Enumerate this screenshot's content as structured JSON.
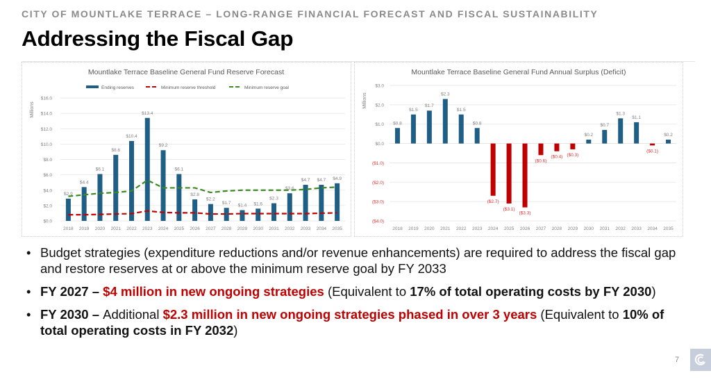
{
  "header": {
    "supertitle": "CITY OF MOUNTLAKE TERRACE – LONG-RANGE FINANCIAL FORECAST AND FISCAL SUSTAINABILITY",
    "title": "Addressing the Fiscal Gap"
  },
  "chart_data": [
    {
      "type": "bar",
      "title": "Mountlake Terrace Baseline General Fund Reserve Forecast",
      "xlabel": "",
      "ylabel": "Millions",
      "ylim": [
        0,
        16
      ],
      "yticks": [
        0,
        2,
        4,
        6,
        8,
        10,
        12,
        14,
        16
      ],
      "ytick_labels": [
        "$0.0",
        "$2.0",
        "$4.0",
        "$6.0",
        "$8.0",
        "$10.0",
        "$12.0",
        "$14.0",
        "$16.0"
      ],
      "grid": true,
      "legend": "top",
      "categories": [
        "2018",
        "2019",
        "2020",
        "2021",
        "2022",
        "2023",
        "2024",
        "2025",
        "2026",
        "2027",
        "2028",
        "2029",
        "2030",
        "2031",
        "2032",
        "2033",
        "2034",
        "2035"
      ],
      "series": [
        {
          "name": "Ending reserves",
          "kind": "bar",
          "color": "#1f5f85",
          "values": [
            2.9,
            4.4,
            6.1,
            8.6,
            10.4,
            13.4,
            9.2,
            6.1,
            2.8,
            2.2,
            1.7,
            1.4,
            1.6,
            2.3,
            3.6,
            4.7,
            4.7,
            4.9
          ],
          "labels": [
            "$2.9",
            "$4.4",
            "$6.1",
            "$8.6",
            "$10.4",
            "$13.4",
            "$9.2",
            "$6.1",
            "$2.8",
            "$2.2",
            "$1.7",
            "$1.4",
            "$1.6",
            "$2.3",
            "$3.6",
            "$4.7",
            "$4.7",
            "$4.9"
          ]
        },
        {
          "name": "Minimum reserve threshold",
          "kind": "dashed-line",
          "color": "#c00000",
          "values": [
            0.8,
            0.8,
            0.85,
            0.9,
            0.95,
            1.3,
            1.1,
            1.05,
            1.05,
            0.9,
            0.9,
            0.95,
            0.95,
            0.95,
            0.95,
            0.95,
            1.0,
            1.05
          ]
        },
        {
          "name": "Minimum reserve goal",
          "kind": "dashed-line",
          "color": "#3b8a21",
          "values": [
            3.2,
            3.4,
            3.6,
            3.7,
            3.9,
            5.3,
            4.3,
            4.3,
            4.3,
            3.7,
            3.9,
            4.0,
            4.0,
            4.0,
            4.0,
            4.1,
            4.3,
            4.4
          ]
        }
      ]
    },
    {
      "type": "bar",
      "title": "Mountlake Terrace Baseline General Fund Annual Surplus (Deficit)",
      "xlabel": "",
      "ylabel": "Millions",
      "ylim": [
        -4,
        3
      ],
      "yticks": [
        3,
        2,
        1,
        0,
        -1,
        -2,
        -3,
        -4
      ],
      "ytick_labels": [
        "$3.0",
        "$2.0",
        "$1.0",
        "$0.0",
        "($1.0)",
        "($2.0)",
        "($3.0)",
        "($4.0)"
      ],
      "grid": true,
      "legend": "none",
      "positive_color": "#1f5f85",
      "negative_color": "#c00000",
      "categories": [
        "2018",
        "2019",
        "2020",
        "2021",
        "2022",
        "2023",
        "2024",
        "2025",
        "2026",
        "2027",
        "2028",
        "2029",
        "2030",
        "2031",
        "2032",
        "2033",
        "2034",
        "2035"
      ],
      "series": [
        {
          "name": "Annual surplus (deficit)",
          "values": [
            0.8,
            1.5,
            1.7,
            2.3,
            1.5,
            0.8,
            -2.7,
            -3.1,
            -3.3,
            -0.6,
            -0.4,
            -0.3,
            0.2,
            0.7,
            1.3,
            1.1,
            -0.1,
            0.2
          ],
          "labels": [
            "$0.8",
            "$1.5",
            "$1.7",
            "$2.3",
            "$1.5",
            "$0.8",
            "($2.7)",
            "($3.1)",
            "($3.3)",
            "($0.6)",
            "($0.4)",
            "($0.3)",
            "$0.2",
            "$0.7",
            "$1.3",
            "$1.1",
            "($0.1)",
            "$0.2"
          ]
        }
      ]
    }
  ],
  "bullets": [
    {
      "parts": [
        {
          "text": "Budget strategies (expenditure reductions and/or revenue enhancements) are required to address the fiscal gap and restore reserves at or above the minimum reserve goal by FY 2033",
          "style": "normal"
        }
      ]
    },
    {
      "parts": [
        {
          "text": "FY 2027 – ",
          "style": "bold"
        },
        {
          "text": " $4 million in new ongoing strategies",
          "style": "red"
        },
        {
          "text": " (",
          "style": "normal"
        },
        {
          "text": "Equivalent to ",
          "style": "normal"
        },
        {
          "text": "17% of total operating costs by FY 2030",
          "style": "bold"
        },
        {
          "text": ")",
          "style": "normal"
        }
      ]
    },
    {
      "parts": [
        {
          "text": "FY 2030 – ",
          "style": "bold"
        },
        {
          "text": " Additional ",
          "style": "normal"
        },
        {
          "text": "$2.3 million in new ongoing strategies phased in over 3 years",
          "style": "red"
        },
        {
          "text": " (Equivalent to ",
          "style": "normal"
        },
        {
          "text": "10% of total operating costs in FY 2032",
          "style": "bold"
        },
        {
          "text": ")",
          "style": "normal"
        }
      ]
    }
  ],
  "footer": {
    "page_number": "7",
    "logo_icon": "city-logo-icon"
  }
}
